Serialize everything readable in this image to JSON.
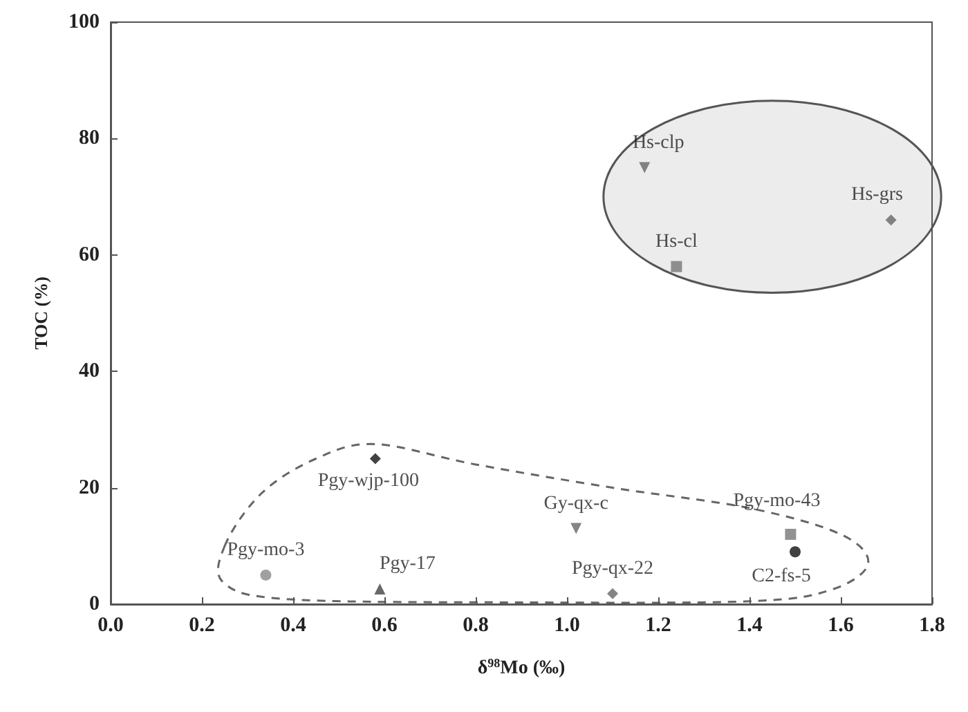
{
  "chart_data": {
    "type": "scatter",
    "xlabel": "δ$^{98}$Mo (‰)",
    "ylabel": "TOC (%)",
    "xlim": [
      0,
      1.8
    ],
    "xticks": [
      {
        "value": 0,
        "label": "0.0"
      },
      {
        "value": 0.2,
        "label": "0.2"
      },
      {
        "value": 0.4,
        "label": "0.4"
      },
      {
        "value": 0.6,
        "label": "0.6"
      },
      {
        "value": 0.8,
        "label": "0.8"
      },
      {
        "value": 1.0,
        "label": "1.0"
      },
      {
        "value": 1.2,
        "label": "1.2"
      },
      {
        "value": 1.4,
        "label": "1.4"
      },
      {
        "value": 1.6,
        "label": "1.6"
      },
      {
        "value": 1.8,
        "label": "1.8"
      }
    ],
    "ylim": [
      0,
      100
    ],
    "yticks": [
      0,
      20,
      40,
      60,
      80,
      100
    ],
    "grid": false,
    "legend": false,
    "series": [
      {
        "name": "Hs-clp",
        "color": "#666666",
        "marker": "triangle-down",
        "x": [
          1.17
        ],
        "values": [
          75
        ]
      },
      {
        "name": "Hs-grs",
        "color": "#666666",
        "marker": "diamond",
        "x": [
          1.71
        ],
        "values": [
          66
        ]
      },
      {
        "name": "Hs-cl",
        "color": "#777777",
        "marker": "square",
        "x": [
          1.24
        ],
        "values": [
          58
        ]
      },
      {
        "name": "Pgy-wjp-100",
        "color": "#111111",
        "marker": "diamond",
        "x": [
          0.58
        ],
        "values": [
          25
        ]
      },
      {
        "name": "Gy-qx-c",
        "color": "#666666",
        "marker": "triangle-down",
        "x": [
          1.02
        ],
        "values": [
          13
        ]
      },
      {
        "name": "Pgy-mo-43",
        "color": "#777777",
        "marker": "square",
        "x": [
          1.49
        ],
        "values": [
          12
        ]
      },
      {
        "name": "C2-fs-5",
        "color": "#111111",
        "marker": "circle",
        "x": [
          1.5
        ],
        "values": [
          9
        ]
      },
      {
        "name": "Pgy-mo-3",
        "color": "#888888",
        "marker": "circle",
        "x": [
          0.34
        ],
        "values": [
          5
        ]
      },
      {
        "name": "Pgy-17",
        "color": "#444444",
        "marker": "triangle",
        "x": [
          0.59
        ],
        "values": [
          2.6
        ]
      },
      {
        "name": "Pgy-qx-22",
        "color": "#666666",
        "marker": "diamond",
        "x": [
          1.1
        ],
        "values": [
          1.8
        ]
      }
    ]
  }
}
